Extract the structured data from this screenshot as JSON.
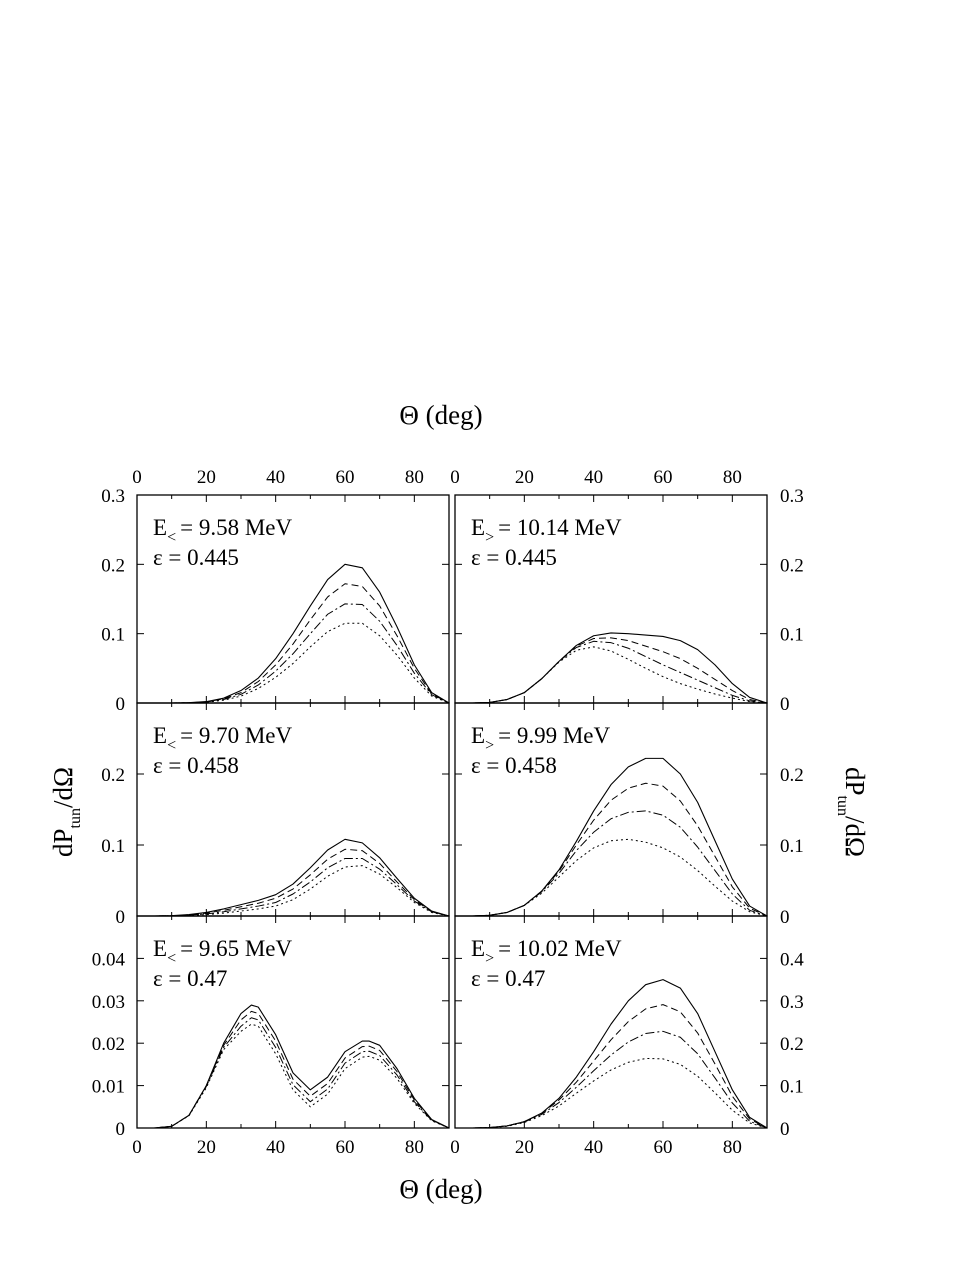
{
  "figure": {
    "top_xlabel": "Θ (deg)",
    "bottom_xlabel": "Θ (deg)",
    "left_ylabel": "dP_tun/dΩ",
    "right_ylabel": "dP_tun/dΩ"
  },
  "chart_data": [
    {
      "type": "line",
      "panel": "top-left",
      "annotation": {
        "energy_label": "E",
        "energy_sub": "<",
        "energy_value": "= 9.58 MeV",
        "epsilon": "ε = 0.445"
      },
      "xlim": [
        0,
        90
      ],
      "ylim": [
        0,
        0.3
      ],
      "xticks": [
        0,
        20,
        40,
        60,
        80
      ],
      "yticks": [
        0,
        0.1,
        0.2,
        0.3
      ],
      "ytick_labels": [
        "0",
        "0.1",
        "0.2",
        "0.3"
      ],
      "x": [
        0,
        5,
        10,
        15,
        20,
        25,
        30,
        35,
        40,
        45,
        50,
        55,
        60,
        65,
        70,
        75,
        80,
        85,
        90
      ],
      "series": [
        {
          "style": "solid",
          "values": [
            0,
            0,
            0,
            0.0005,
            0.002,
            0.007,
            0.018,
            0.036,
            0.064,
            0.1,
            0.14,
            0.178,
            0.2,
            0.195,
            0.16,
            0.11,
            0.055,
            0.015,
            0
          ]
        },
        {
          "style": "dashed",
          "values": [
            0,
            0,
            0,
            0.0004,
            0.0017,
            0.006,
            0.015,
            0.031,
            0.055,
            0.085,
            0.12,
            0.153,
            0.172,
            0.168,
            0.14,
            0.097,
            0.05,
            0.013,
            0
          ]
        },
        {
          "style": "dashdot",
          "values": [
            0,
            0,
            0,
            0.0003,
            0.0014,
            0.005,
            0.0125,
            0.026,
            0.046,
            0.071,
            0.1,
            0.128,
            0.143,
            0.142,
            0.118,
            0.083,
            0.043,
            0.012,
            0
          ]
        },
        {
          "style": "dotted",
          "values": [
            0,
            0,
            0,
            0.0002,
            0.0011,
            0.004,
            0.01,
            0.021,
            0.037,
            0.057,
            0.081,
            0.103,
            0.115,
            0.115,
            0.097,
            0.069,
            0.036,
            0.01,
            0
          ]
        }
      ]
    },
    {
      "type": "line",
      "panel": "top-right",
      "annotation": {
        "energy_label": "E",
        "energy_sub": ">",
        "energy_value": "= 10.14 MeV",
        "epsilon": "ε = 0.445"
      },
      "xlim": [
        0,
        90
      ],
      "ylim": [
        0,
        0.3
      ],
      "xticks": [
        0,
        20,
        40,
        60,
        80
      ],
      "yticks": [
        0,
        0.1,
        0.2,
        0.3
      ],
      "ytick_labels": [
        "0",
        "0.1",
        "0.2",
        "0.3"
      ],
      "x": [
        0,
        5,
        10,
        15,
        20,
        25,
        30,
        35,
        40,
        45,
        50,
        55,
        60,
        65,
        70,
        75,
        80,
        85,
        90
      ],
      "series": [
        {
          "style": "solid",
          "values": [
            0,
            0,
            0.0008,
            0.005,
            0.015,
            0.035,
            0.06,
            0.083,
            0.097,
            0.101,
            0.1,
            0.098,
            0.096,
            0.09,
            0.077,
            0.055,
            0.028,
            0.008,
            0
          ]
        },
        {
          "style": "dashed",
          "values": [
            0,
            0,
            0.0008,
            0.005,
            0.015,
            0.035,
            0.06,
            0.082,
            0.093,
            0.094,
            0.09,
            0.082,
            0.074,
            0.064,
            0.05,
            0.034,
            0.018,
            0.005,
            0
          ]
        },
        {
          "style": "dashdot",
          "values": [
            0,
            0,
            0.0008,
            0.005,
            0.015,
            0.035,
            0.06,
            0.08,
            0.089,
            0.087,
            0.079,
            0.067,
            0.055,
            0.044,
            0.033,
            0.022,
            0.011,
            0.003,
            0
          ]
        },
        {
          "style": "dotted",
          "values": [
            0,
            0,
            0.0008,
            0.005,
            0.015,
            0.035,
            0.059,
            0.076,
            0.081,
            0.075,
            0.063,
            0.05,
            0.038,
            0.028,
            0.02,
            0.013,
            0.007,
            0.002,
            0
          ]
        }
      ]
    },
    {
      "type": "line",
      "panel": "middle-left",
      "annotation": {
        "energy_label": "E",
        "energy_sub": "<",
        "energy_value": "= 9.70 MeV",
        "epsilon": "ε = 0.458"
      },
      "xlim": [
        0,
        90
      ],
      "ylim": [
        0,
        0.3
      ],
      "xticks": [
        0,
        20,
        40,
        60,
        80
      ],
      "yticks": [
        0,
        0.1,
        0.2
      ],
      "ytick_labels": [
        "0",
        "0.1",
        "0.2"
      ],
      "x": [
        0,
        5,
        10,
        15,
        20,
        25,
        30,
        35,
        40,
        45,
        50,
        55,
        60,
        65,
        70,
        75,
        80,
        85,
        90
      ],
      "series": [
        {
          "style": "solid",
          "values": [
            0,
            0,
            0.0005,
            0.002,
            0.005,
            0.01,
            0.016,
            0.022,
            0.03,
            0.045,
            0.068,
            0.093,
            0.108,
            0.103,
            0.082,
            0.053,
            0.025,
            0.007,
            0
          ]
        },
        {
          "style": "dashed",
          "values": [
            0,
            0,
            0.0004,
            0.0016,
            0.004,
            0.008,
            0.013,
            0.018,
            0.025,
            0.038,
            0.058,
            0.08,
            0.094,
            0.092,
            0.074,
            0.048,
            0.023,
            0.006,
            0
          ]
        },
        {
          "style": "dashdot",
          "values": [
            0,
            0,
            0.0003,
            0.0012,
            0.003,
            0.006,
            0.01,
            0.014,
            0.019,
            0.031,
            0.048,
            0.068,
            0.081,
            0.081,
            0.066,
            0.044,
            0.021,
            0.006,
            0
          ]
        },
        {
          "style": "dotted",
          "values": [
            0,
            0,
            0.0002,
            0.0008,
            0.002,
            0.004,
            0.007,
            0.01,
            0.014,
            0.023,
            0.038,
            0.056,
            0.069,
            0.071,
            0.059,
            0.04,
            0.019,
            0.005,
            0
          ]
        }
      ]
    },
    {
      "type": "line",
      "panel": "middle-right",
      "annotation": {
        "energy_label": "E",
        "energy_sub": ">",
        "energy_value": "= 9.99 MeV",
        "epsilon": "ε = 0.458"
      },
      "xlim": [
        0,
        90
      ],
      "ylim": [
        0,
        0.3
      ],
      "xticks": [
        0,
        20,
        40,
        60,
        80
      ],
      "yticks": [
        0,
        0.1,
        0.2
      ],
      "ytick_labels": [
        "0",
        "0.1",
        "0.2"
      ],
      "x": [
        0,
        5,
        10,
        15,
        20,
        25,
        30,
        35,
        40,
        45,
        50,
        55,
        60,
        65,
        70,
        75,
        80,
        85,
        90
      ],
      "series": [
        {
          "style": "solid",
          "values": [
            0,
            0,
            0.001,
            0.005,
            0.015,
            0.035,
            0.065,
            0.105,
            0.148,
            0.185,
            0.21,
            0.222,
            0.222,
            0.2,
            0.16,
            0.106,
            0.052,
            0.014,
            0
          ]
        },
        {
          "style": "dashed",
          "values": [
            0,
            0,
            0.001,
            0.005,
            0.015,
            0.035,
            0.063,
            0.1,
            0.135,
            0.163,
            0.18,
            0.187,
            0.183,
            0.162,
            0.127,
            0.084,
            0.041,
            0.011,
            0
          ]
        },
        {
          "style": "dashdot",
          "values": [
            0,
            0,
            0.001,
            0.005,
            0.015,
            0.034,
            0.06,
            0.092,
            0.118,
            0.137,
            0.146,
            0.148,
            0.142,
            0.125,
            0.097,
            0.064,
            0.031,
            0.008,
            0
          ]
        },
        {
          "style": "dotted",
          "values": [
            0,
            0,
            0.001,
            0.005,
            0.015,
            0.032,
            0.055,
            0.078,
            0.096,
            0.106,
            0.108,
            0.104,
            0.096,
            0.083,
            0.064,
            0.042,
            0.021,
            0.006,
            0
          ]
        }
      ]
    },
    {
      "type": "line",
      "panel": "bottom-left",
      "annotation": {
        "energy_label": "E",
        "energy_sub": "<",
        "energy_value": "= 9.65 MeV",
        "epsilon": "ε = 0.47"
      },
      "xlim": [
        0,
        90
      ],
      "ylim": [
        0,
        0.05
      ],
      "xticks": [
        0,
        20,
        40,
        60,
        80
      ],
      "yticks": [
        0,
        0.01,
        0.02,
        0.03,
        0.04
      ],
      "ytick_labels": [
        "0",
        "0.01",
        "0.02",
        "0.03",
        "0.04"
      ],
      "x": [
        0,
        5,
        10,
        15,
        20,
        25,
        30,
        33,
        35,
        40,
        45,
        50,
        55,
        60,
        65,
        67,
        70,
        75,
        80,
        85,
        90
      ],
      "series": [
        {
          "style": "solid",
          "values": [
            0,
            0,
            0.0004,
            0.003,
            0.01,
            0.02,
            0.027,
            0.029,
            0.0285,
            0.022,
            0.013,
            0.009,
            0.012,
            0.018,
            0.0205,
            0.0205,
            0.0195,
            0.014,
            0.007,
            0.002,
            0
          ]
        },
        {
          "style": "dashed",
          "values": [
            0,
            0,
            0.0004,
            0.003,
            0.01,
            0.0195,
            0.0255,
            0.0275,
            0.027,
            0.0205,
            0.0115,
            0.0075,
            0.0105,
            0.0165,
            0.0192,
            0.0193,
            0.0183,
            0.0133,
            0.0066,
            0.0019,
            0
          ]
        },
        {
          "style": "dashdot",
          "values": [
            0,
            0,
            0.0004,
            0.003,
            0.0098,
            0.019,
            0.024,
            0.026,
            0.0255,
            0.019,
            0.0102,
            0.0062,
            0.0092,
            0.0153,
            0.018,
            0.0181,
            0.0171,
            0.0125,
            0.0062,
            0.0018,
            0
          ]
        },
        {
          "style": "dotted",
          "values": [
            0,
            0,
            0.0004,
            0.0029,
            0.0095,
            0.0185,
            0.0228,
            0.0245,
            0.024,
            0.0175,
            0.009,
            0.005,
            0.008,
            0.014,
            0.0167,
            0.0169,
            0.016,
            0.0117,
            0.0058,
            0.0017,
            0
          ]
        }
      ]
    },
    {
      "type": "line",
      "panel": "bottom-right",
      "annotation": {
        "energy_label": "E",
        "energy_sub": ">",
        "energy_value": "= 10.02 MeV",
        "epsilon": "ε = 0.47"
      },
      "xlim": [
        0,
        90
      ],
      "ylim": [
        0,
        0.5
      ],
      "xticks": [
        0,
        20,
        40,
        60,
        80
      ],
      "yticks": [
        0,
        0.1,
        0.2,
        0.3,
        0.4
      ],
      "ytick_labels": [
        "0",
        "0.1",
        "0.2",
        "0.3",
        "0.4"
      ],
      "x": [
        0,
        5,
        10,
        15,
        20,
        25,
        30,
        35,
        40,
        45,
        50,
        55,
        60,
        65,
        70,
        75,
        80,
        85,
        90
      ],
      "series": [
        {
          "style": "solid",
          "values": [
            0,
            0,
            0.001,
            0.005,
            0.015,
            0.035,
            0.07,
            0.12,
            0.18,
            0.245,
            0.3,
            0.338,
            0.35,
            0.33,
            0.27,
            0.18,
            0.09,
            0.025,
            0
          ]
        },
        {
          "style": "dashed",
          "values": [
            0,
            0,
            0.001,
            0.005,
            0.015,
            0.034,
            0.066,
            0.108,
            0.158,
            0.208,
            0.251,
            0.281,
            0.291,
            0.274,
            0.224,
            0.151,
            0.075,
            0.021,
            0
          ]
        },
        {
          "style": "dashdot",
          "values": [
            0,
            0,
            0.001,
            0.005,
            0.014,
            0.032,
            0.06,
            0.096,
            0.135,
            0.172,
            0.203,
            0.223,
            0.228,
            0.214,
            0.175,
            0.118,
            0.059,
            0.016,
            0
          ]
        },
        {
          "style": "dotted",
          "values": [
            0,
            0,
            0.001,
            0.004,
            0.013,
            0.029,
            0.052,
            0.082,
            0.111,
            0.137,
            0.155,
            0.164,
            0.163,
            0.15,
            0.122,
            0.083,
            0.042,
            0.012,
            0
          ]
        }
      ]
    }
  ]
}
